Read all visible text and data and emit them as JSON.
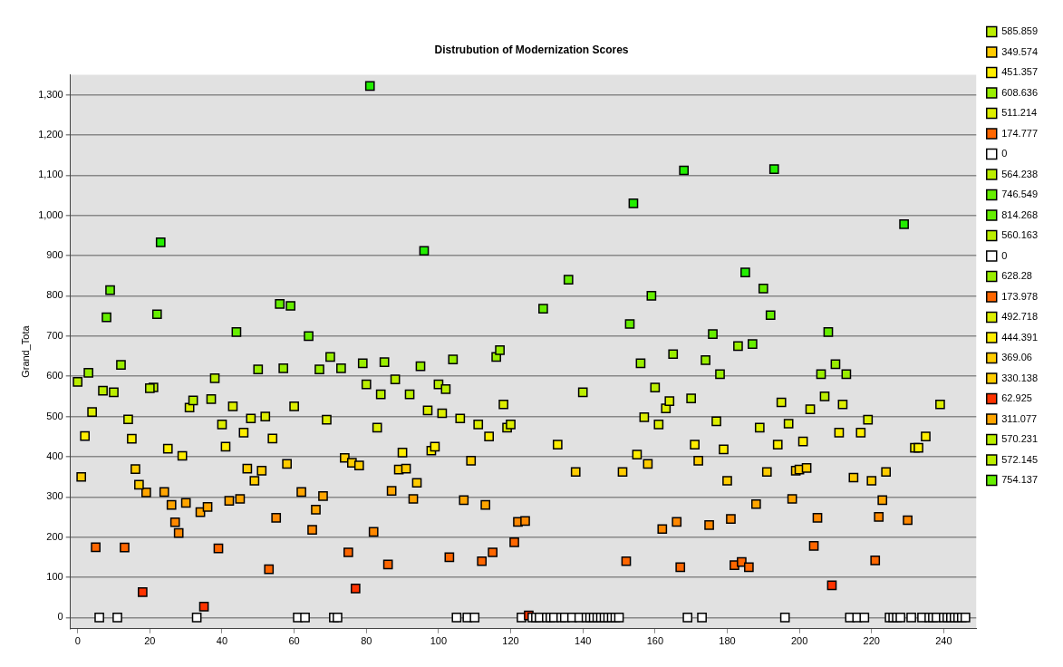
{
  "chart_data": {
    "type": "scatter",
    "title": "Distrubution of Modernization Scores",
    "ylabel": "Grand_Tota",
    "marker": "square",
    "grid": "y",
    "legend": "right",
    "xlim": [
      -2,
      249
    ],
    "xticks": [
      0,
      20,
      40,
      60,
      80,
      100,
      120,
      140,
      160,
      180,
      200,
      220,
      240
    ],
    "ylim": [
      -28,
      1350
    ],
    "yticks": [
      0,
      100,
      200,
      300,
      400,
      500,
      600,
      700,
      800,
      900,
      {
        "value": 1000,
        "label": "1,000"
      },
      {
        "value": 1100,
        "label": "1,100"
      },
      {
        "value": 1200,
        "label": "1,200"
      },
      {
        "value": 1300,
        "label": "1,300"
      }
    ],
    "series": [
      {
        "name": "585.859",
        "color": "#bbee00",
        "x": [
          0
        ],
        "values": [
          585.859
        ]
      },
      {
        "name": "349.574",
        "color": "#ffcc00",
        "x": [
          1
        ],
        "values": [
          349.574
        ]
      },
      {
        "name": "451.357",
        "color": "#ffee00",
        "x": [
          2
        ],
        "values": [
          451.357
        ]
      },
      {
        "name": "608.636",
        "color": "#99ee00",
        "x": [
          3
        ],
        "values": [
          608.636
        ]
      },
      {
        "name": "511.214",
        "color": "#ddee00",
        "x": [
          4
        ],
        "values": [
          511.214
        ]
      },
      {
        "name": "174.777",
        "color": "#ff6600",
        "x": [
          5
        ],
        "values": [
          174.777
        ]
      },
      {
        "name": "0",
        "color": "#ffffff",
        "x": [
          6
        ],
        "values": [
          0
        ]
      },
      {
        "name": "564.238",
        "color": "#bbee00",
        "x": [
          7
        ],
        "values": [
          564.238
        ]
      },
      {
        "name": "746.549",
        "color": "#66ee00",
        "x": [
          8
        ],
        "values": [
          746.549
        ]
      },
      {
        "name": "814.268",
        "color": "#66ee00",
        "x": [
          9
        ],
        "values": [
          814.268
        ]
      },
      {
        "name": "560.163",
        "color": "#bbee00",
        "x": [
          10
        ],
        "values": [
          560.163
        ]
      },
      {
        "name": "0",
        "color": "#ffffff",
        "x": [
          11
        ],
        "values": [
          0
        ]
      },
      {
        "name": "628.28",
        "color": "#99ee00",
        "x": [
          12
        ],
        "values": [
          628.28
        ]
      },
      {
        "name": "173.978",
        "color": "#ff6600",
        "x": [
          13
        ],
        "values": [
          173.978
        ]
      },
      {
        "name": "492.718",
        "color": "#ddee00",
        "x": [
          14
        ],
        "values": [
          492.718
        ]
      },
      {
        "name": "444.391",
        "color": "#ffee00",
        "x": [
          15
        ],
        "values": [
          444.391
        ]
      },
      {
        "name": "369.06",
        "color": "#ffcc00",
        "x": [
          16
        ],
        "values": [
          369.06
        ]
      },
      {
        "name": "330.138",
        "color": "#ffcc00",
        "x": [
          17
        ],
        "values": [
          330.138
        ]
      },
      {
        "name": "62.925",
        "color": "#ff3300",
        "x": [
          18
        ],
        "values": [
          62.925
        ]
      },
      {
        "name": "311.077",
        "color": "#ffa500",
        "x": [
          19
        ],
        "values": [
          311.077
        ]
      },
      {
        "name": "570.231",
        "color": "#bbee00",
        "x": [
          20
        ],
        "values": [
          570.231
        ]
      },
      {
        "name": "572.145",
        "color": "#bbee00",
        "x": [
          21
        ],
        "values": [
          572.145
        ]
      },
      {
        "name": "754.137",
        "color": "#66ee00",
        "x": [
          22
        ],
        "values": [
          754.137
        ]
      },
      {
        "x": [
          23,
          24,
          25,
          26,
          27,
          28,
          29,
          30,
          31,
          32,
          33,
          34,
          35,
          36,
          37,
          38,
          39,
          40,
          41,
          42,
          43,
          44,
          45,
          46,
          47,
          48,
          49,
          50,
          51,
          52,
          53,
          54,
          55,
          56,
          57,
          58,
          59,
          60,
          61,
          62,
          63,
          64,
          65,
          66,
          67,
          68,
          69,
          70,
          71,
          72,
          73,
          74,
          75,
          76,
          77,
          78,
          79,
          80,
          81,
          82,
          83,
          84,
          85,
          86,
          87,
          88,
          89,
          90,
          91,
          92,
          93,
          94,
          95,
          96,
          97,
          98,
          99,
          100,
          101,
          102,
          103,
          104,
          105,
          106,
          107,
          108,
          109,
          110,
          111,
          112,
          113,
          114,
          115,
          116,
          117,
          118,
          119,
          120,
          121,
          122,
          123,
          124,
          125,
          126,
          127,
          128,
          129,
          130,
          131,
          132,
          133,
          134,
          135,
          136,
          137,
          138,
          139,
          140,
          141,
          142,
          143,
          144,
          145,
          146,
          147,
          148,
          149,
          150,
          151,
          152,
          153,
          154,
          155,
          156,
          157,
          158,
          159,
          160,
          161,
          162,
          163,
          164,
          165,
          166,
          167,
          168,
          169,
          170,
          171,
          172,
          173,
          174,
          175,
          176,
          177,
          178,
          179,
          180,
          181,
          182,
          183,
          184,
          185,
          186,
          187,
          188,
          189,
          190,
          191,
          192,
          193,
          194,
          195,
          196,
          197,
          198,
          199,
          200,
          201,
          202,
          203,
          204,
          205,
          206,
          207,
          208,
          209,
          210,
          211,
          212,
          213,
          214,
          215,
          216,
          217,
          218,
          219,
          220,
          221,
          222,
          223,
          224,
          225,
          226,
          227,
          228,
          229,
          230,
          231,
          232,
          233,
          234,
          235,
          236,
          237,
          238,
          239,
          240,
          241,
          242,
          243,
          244,
          245,
          246
        ],
        "values": [
          933,
          312,
          420,
          280,
          237,
          210,
          402,
          285,
          522,
          540,
          0,
          262,
          27,
          275,
          543,
          595,
          172,
          480,
          425,
          290,
          525,
          710,
          295,
          460,
          370,
          495,
          340,
          617,
          365,
          500,
          120,
          445,
          248,
          780,
          620,
          382,
          775,
          525,
          0,
          312,
          0,
          700,
          218,
          268,
          617,
          302,
          492,
          648,
          0,
          0,
          620,
          397,
          162,
          385,
          72,
          378,
          632,
          580,
          1322,
          213,
          472,
          555,
          635,
          132,
          315,
          592,
          368,
          410,
          370,
          555,
          295,
          335,
          625,
          912,
          515,
          415,
          425,
          580,
          508,
          568,
          150,
          642,
          0,
          495,
          292,
          0,
          390,
          0,
          480,
          140,
          280,
          450,
          162,
          648,
          665,
          530,
          472,
          480,
          187,
          238,
          0,
          240,
          5,
          0,
          0,
          0,
          768,
          0,
          0,
          0,
          430,
          0,
          0,
          840,
          0,
          362,
          0,
          560,
          0,
          0,
          0,
          0,
          0,
          0,
          0,
          0,
          0,
          0,
          362,
          140,
          730,
          1030,
          405,
          632,
          498,
          382,
          800,
          572,
          480,
          220,
          520,
          538,
          655,
          238,
          125,
          1112,
          0,
          545,
          430,
          390,
          0,
          640,
          230,
          705,
          488,
          605,
          418,
          340,
          245,
          130,
          675,
          138,
          858,
          125,
          680,
          282,
          472,
          818,
          362,
          752,
          1115,
          430,
          535,
          0,
          482,
          295,
          365,
          368,
          438,
          372,
          518,
          178,
          248,
          605,
          550,
          710,
          80,
          630,
          460,
          530,
          605,
          0,
          348,
          0,
          460,
          0,
          492,
          340,
          142,
          250,
          292,
          362,
          0,
          0,
          0,
          0,
          978,
          242,
          0,
          422,
          422,
          0,
          450,
          0,
          0,
          0,
          530,
          0,
          0,
          0,
          0,
          0,
          0,
          0
        ],
        "colors": [
          "#22ee00",
          "#ffa500",
          "#ffee00",
          "#ffa500",
          "#ff8800",
          "#ff8800",
          "#ffee00",
          "#ffa500",
          "#ddee00",
          "#bbee00",
          "#ffffff",
          "#ffa500",
          "#ff3300",
          "#ffa500",
          "#bbee00",
          "#bbee00",
          "#ff6600",
          "#ddee00",
          "#ffee00",
          "#ffa500",
          "#ddee00",
          "#66ee00",
          "#ffa500",
          "#ffee00",
          "#ffcc00",
          "#ddee00",
          "#ffcc00",
          "#99ee00",
          "#ffcc00",
          "#ddee00",
          "#ff6600",
          "#ffee00",
          "#ff8800",
          "#66ee00",
          "#99ee00",
          "#ffcc00",
          "#66ee00",
          "#ddee00",
          "#ffffff",
          "#ffa500",
          "#ffffff",
          "#66ee00",
          "#ff8800",
          "#ffa500",
          "#99ee00",
          "#ffa500",
          "#ddee00",
          "#99ee00",
          "#ffffff",
          "#ffffff",
          "#99ee00",
          "#ffcc00",
          "#ff6600",
          "#ffcc00",
          "#ff3300",
          "#ffcc00",
          "#99ee00",
          "#bbee00",
          "#22ee00",
          "#ff8800",
          "#ddee00",
          "#bbee00",
          "#99ee00",
          "#ff6600",
          "#ffa500",
          "#bbee00",
          "#ffcc00",
          "#ffee00",
          "#ffcc00",
          "#bbee00",
          "#ffa500",
          "#ffcc00",
          "#99ee00",
          "#22ee00",
          "#ddee00",
          "#ffee00",
          "#ffee00",
          "#bbee00",
          "#ddee00",
          "#bbee00",
          "#ff6600",
          "#99ee00",
          "#ffffff",
          "#ddee00",
          "#ffa500",
          "#ffffff",
          "#ffcc00",
          "#ffffff",
          "#ddee00",
          "#ff6600",
          "#ffa500",
          "#ffee00",
          "#ff6600",
          "#99ee00",
          "#99ee00",
          "#ddee00",
          "#ddee00",
          "#ddee00",
          "#ff6600",
          "#ff8800",
          "#ffffff",
          "#ff8800",
          "#ff3300",
          "#ffffff",
          "#ffffff",
          "#ffffff",
          "#66ee00",
          "#ffffff",
          "#ffffff",
          "#ffffff",
          "#ffee00",
          "#ffffff",
          "#ffffff",
          "#66ee00",
          "#ffffff",
          "#ffcc00",
          "#ffffff",
          "#bbee00",
          "#ffffff",
          "#ffffff",
          "#ffffff",
          "#ffffff",
          "#ffffff",
          "#ffffff",
          "#ffffff",
          "#ffffff",
          "#ffffff",
          "#ffffff",
          "#ffcc00",
          "#ff6600",
          "#66ee00",
          "#22ee00",
          "#ffee00",
          "#99ee00",
          "#ddee00",
          "#ffcc00",
          "#66ee00",
          "#bbee00",
          "#ddee00",
          "#ff8800",
          "#ddee00",
          "#ddee00",
          "#99ee00",
          "#ff8800",
          "#ff6600",
          "#22ee00",
          "#ffffff",
          "#bbee00",
          "#ffee00",
          "#ffcc00",
          "#ffffff",
          "#99ee00",
          "#ff8800",
          "#66ee00",
          "#ddee00",
          "#99ee00",
          "#ffee00",
          "#ffcc00",
          "#ff8800",
          "#ff6600",
          "#99ee00",
          "#ff6600",
          "#22ee00",
          "#ff6600",
          "#66ee00",
          "#ffa500",
          "#ddee00",
          "#66ee00",
          "#ffcc00",
          "#66ee00",
          "#22ee00",
          "#ffee00",
          "#ddee00",
          "#ffffff",
          "#ddee00",
          "#ffa500",
          "#ffcc00",
          "#ffcc00",
          "#ffee00",
          "#ffcc00",
          "#ddee00",
          "#ff6600",
          "#ff8800",
          "#99ee00",
          "#bbee00",
          "#66ee00",
          "#ff3300",
          "#99ee00",
          "#ffee00",
          "#ddee00",
          "#99ee00",
          "#ffffff",
          "#ffcc00",
          "#ffffff",
          "#ffee00",
          "#ffffff",
          "#ddee00",
          "#ffcc00",
          "#ff6600",
          "#ff8800",
          "#ffa500",
          "#ffcc00",
          "#ffffff",
          "#ffffff",
          "#ffffff",
          "#ffffff",
          "#22ee00",
          "#ff8800",
          "#ffffff",
          "#ffee00",
          "#ffee00",
          "#ffffff",
          "#ffee00",
          "#ffffff",
          "#ffffff",
          "#ffffff",
          "#ddee00",
          "#ffffff",
          "#ffffff",
          "#ffffff",
          "#ffffff",
          "#ffffff",
          "#ffffff",
          "#ffffff"
        ]
      }
    ]
  }
}
